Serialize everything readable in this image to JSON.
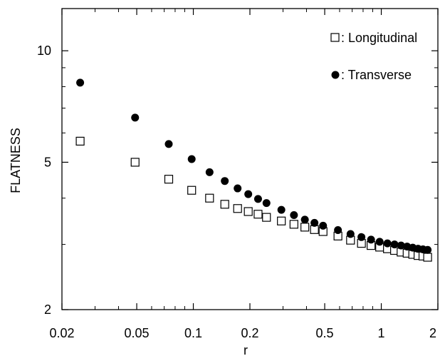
{
  "chart_data": {
    "type": "scatter",
    "title": "",
    "xlabel": "r",
    "ylabel": "FLATNESS",
    "xscale": "log",
    "yscale": "log",
    "xlim": [
      0.02,
      2
    ],
    "ylim": [
      2,
      13
    ],
    "x_ticks": [
      {
        "value": 0.02,
        "label": "0.02"
      },
      {
        "value": 0.05,
        "label": "0.05"
      },
      {
        "value": 0.1,
        "label": "0.1"
      },
      {
        "value": 0.2,
        "label": "0.2"
      },
      {
        "value": 0.5,
        "label": "0.5"
      },
      {
        "value": 1,
        "label": "1"
      },
      {
        "value": 2,
        "label": "2"
      }
    ],
    "y_ticks": [
      {
        "value": 2,
        "label": "2"
      },
      {
        "value": 5,
        "label": "5"
      },
      {
        "value": 10,
        "label": "10"
      }
    ],
    "grid": false,
    "legend_position": "top-right",
    "series": [
      {
        "name": ": Longitudinal",
        "marker": "open-square",
        "color": "#000000",
        "x": [
          0.025,
          0.049,
          0.074,
          0.098,
          0.122,
          0.147,
          0.172,
          0.196,
          0.221,
          0.245,
          0.294,
          0.343,
          0.392,
          0.441,
          0.49,
          0.588,
          0.686,
          0.784,
          0.882,
          0.98,
          1.078,
          1.176,
          1.274,
          1.372,
          1.47,
          1.568,
          1.666,
          1.764
        ],
        "y": [
          5.7,
          5.0,
          4.5,
          4.2,
          4.0,
          3.85,
          3.75,
          3.68,
          3.62,
          3.55,
          3.47,
          3.4,
          3.34,
          3.29,
          3.25,
          3.16,
          3.08,
          3.02,
          2.98,
          2.95,
          2.92,
          2.89,
          2.86,
          2.84,
          2.82,
          2.8,
          2.79,
          2.77
        ]
      },
      {
        "name": ": Transverse",
        "marker": "filled-circle",
        "color": "#000000",
        "x": [
          0.025,
          0.049,
          0.074,
          0.098,
          0.122,
          0.147,
          0.172,
          0.196,
          0.221,
          0.245,
          0.294,
          0.343,
          0.392,
          0.441,
          0.49,
          0.588,
          0.686,
          0.784,
          0.882,
          0.98,
          1.078,
          1.176,
          1.274,
          1.372,
          1.47,
          1.568,
          1.666,
          1.764
        ],
        "y": [
          8.2,
          6.6,
          5.6,
          5.1,
          4.7,
          4.45,
          4.25,
          4.1,
          3.98,
          3.88,
          3.72,
          3.6,
          3.5,
          3.43,
          3.37,
          3.28,
          3.2,
          3.14,
          3.09,
          3.05,
          3.02,
          3.0,
          2.98,
          2.96,
          2.94,
          2.92,
          2.91,
          2.9
        ]
      }
    ]
  }
}
